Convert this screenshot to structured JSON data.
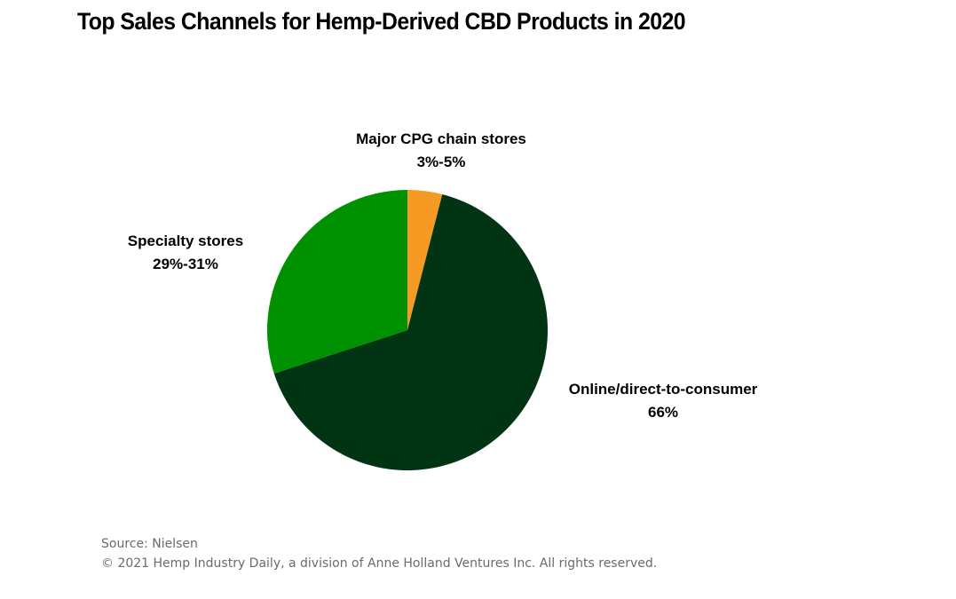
{
  "chart_data": {
    "type": "pie",
    "title": "Top Sales Channels for Hemp-Derived CBD Products in 2020",
    "slices": [
      {
        "label": "Major CPG chain stores",
        "value_label": "3%-5%",
        "value": 4,
        "color": "#f59a23"
      },
      {
        "label": "Online/direct-to-consumer",
        "value_label": "66%",
        "value": 66,
        "color": "#013413"
      },
      {
        "label": "Specialty stores",
        "value_label": "29%-31%",
        "value": 30,
        "color": "#009100"
      }
    ]
  },
  "footer": {
    "source": "Source: Nielsen",
    "copyright": "© 2021 Hemp Industry Daily, a division of Anne Holland Ventures Inc. All rights reserved."
  }
}
